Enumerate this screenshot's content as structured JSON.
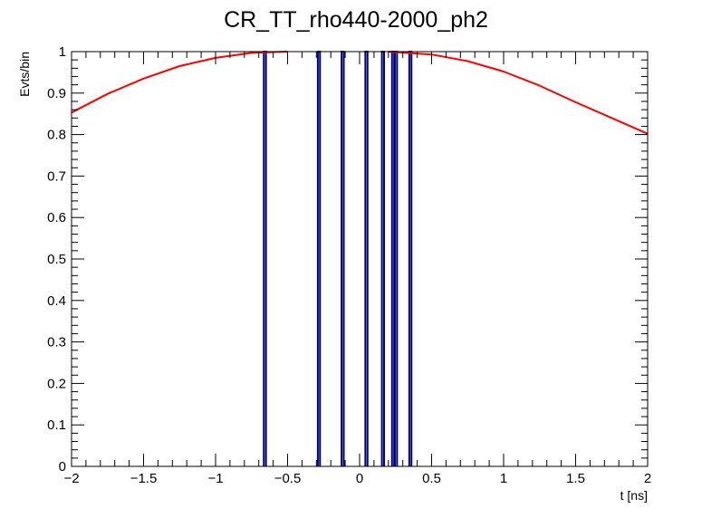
{
  "chart_data": {
    "type": "line",
    "title": "CR_TT_rho440-2000_ph2",
    "xlabel": "t [ns]",
    "ylabel": "Evts/bin",
    "xlim": [
      -2,
      2
    ],
    "ylim": [
      0,
      1
    ],
    "grid": false,
    "legend": "none",
    "x_ticks": [
      {
        "value": -2,
        "label": "−2"
      },
      {
        "value": -1.5,
        "label": "−1.5"
      },
      {
        "value": -1,
        "label": "−1"
      },
      {
        "value": -0.5,
        "label": "−0.5"
      },
      {
        "value": 0,
        "label": "0"
      },
      {
        "value": 0.5,
        "label": "0.5"
      },
      {
        "value": 1,
        "label": "1"
      },
      {
        "value": 1.5,
        "label": "1.5"
      },
      {
        "value": 2,
        "label": "2"
      }
    ],
    "y_ticks": [
      {
        "value": 0,
        "label": "0"
      },
      {
        "value": 0.1,
        "label": "0.1"
      },
      {
        "value": 0.2,
        "label": "0.2"
      },
      {
        "value": 0.3,
        "label": "0.3"
      },
      {
        "value": 0.4,
        "label": "0.4"
      },
      {
        "value": 0.5,
        "label": "0.5"
      },
      {
        "value": 0.6,
        "label": "0.6"
      },
      {
        "value": 0.7,
        "label": "0.7"
      },
      {
        "value": 0.8,
        "label": "0.8"
      },
      {
        "value": 0.9,
        "label": "0.9"
      },
      {
        "value": 1,
        "label": "1"
      }
    ],
    "histogram": {
      "color": "#000080",
      "entries": [
        {
          "x_low": -0.665,
          "x_high": -0.65,
          "value": 1
        },
        {
          "x_low": -0.29,
          "x_high": -0.275,
          "value": 1
        },
        {
          "x_low": -0.125,
          "x_high": -0.11,
          "value": 1
        },
        {
          "x_low": 0.04,
          "x_high": 0.055,
          "value": 1
        },
        {
          "x_low": 0.155,
          "x_high": 0.17,
          "value": 1
        },
        {
          "x_low": 0.225,
          "x_high": 0.24,
          "value": 1
        },
        {
          "x_low": 0.245,
          "x_high": 0.26,
          "value": 1
        },
        {
          "x_low": 0.345,
          "x_high": 0.36,
          "value": 1
        }
      ]
    },
    "curves": [
      {
        "color": "#ff0000",
        "segment": "left",
        "x": [
          -2.0,
          -1.75,
          -1.5,
          -1.25,
          -1.0,
          -0.75,
          -0.5
        ],
        "y": [
          0.853,
          0.898,
          0.935,
          0.965,
          0.985,
          0.997,
          1.0
        ]
      },
      {
        "color": "#ff0000",
        "segment": "right",
        "x": [
          0.2,
          0.5,
          0.75,
          1.0,
          1.25,
          1.5,
          1.75,
          2.0
        ],
        "y": [
          1.0,
          0.993,
          0.977,
          0.952,
          0.918,
          0.878,
          0.84,
          0.802
        ]
      }
    ]
  }
}
